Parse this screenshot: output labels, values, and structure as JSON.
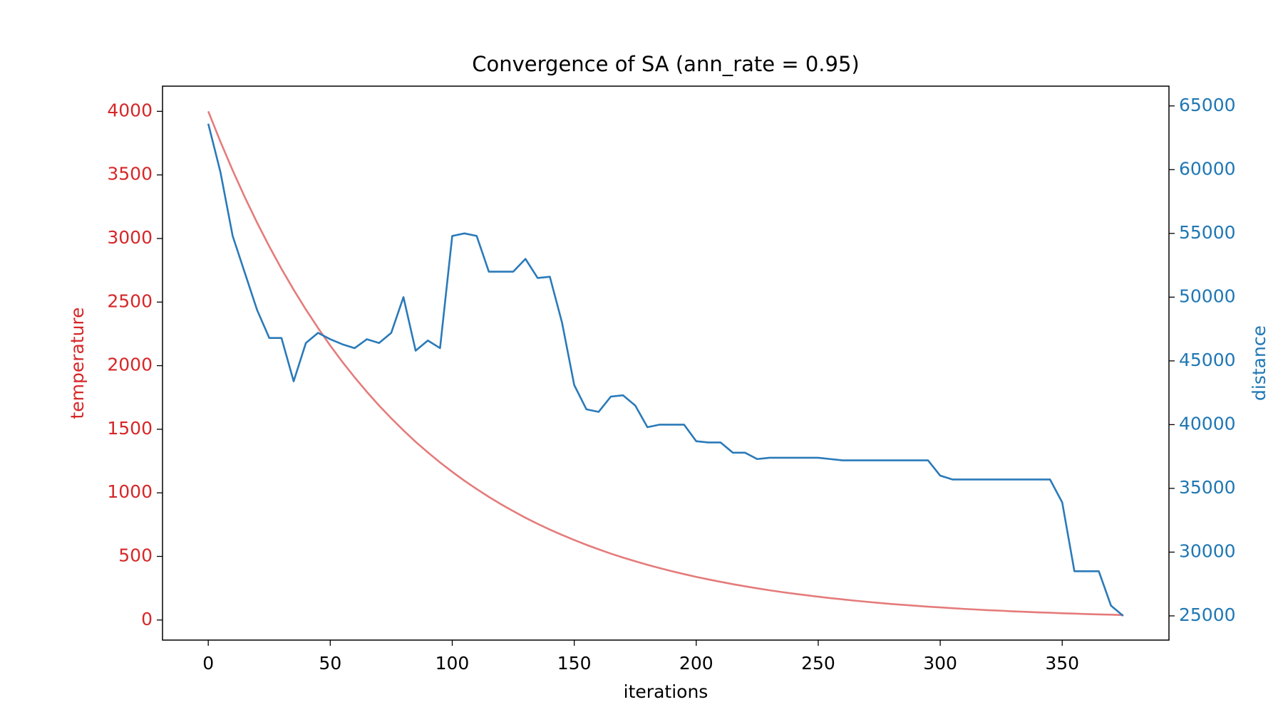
{
  "chart_data": {
    "type": "line",
    "title": "Convergence of SA (ann_rate = 0.95)",
    "xlabel": "iterations",
    "x": [
      0,
      5,
      10,
      15,
      20,
      25,
      30,
      35,
      40,
      45,
      50,
      55,
      60,
      65,
      70,
      75,
      80,
      85,
      90,
      95,
      100,
      105,
      110,
      115,
      120,
      125,
      130,
      135,
      140,
      145,
      150,
      155,
      160,
      165,
      170,
      175,
      180,
      185,
      190,
      195,
      200,
      205,
      210,
      215,
      220,
      225,
      230,
      235,
      240,
      245,
      250,
      255,
      260,
      265,
      270,
      275,
      280,
      285,
      290,
      295,
      300,
      305,
      310,
      315,
      320,
      325,
      330,
      335,
      340,
      345,
      350,
      355,
      360,
      365,
      370,
      375
    ],
    "series": [
      {
        "name": "temperature",
        "color": "#e57b7b",
        "axis": "y",
        "values": [
          4000,
          3761,
          3536,
          3324,
          3125,
          2938,
          2762,
          2597,
          2442,
          2296,
          2158,
          2029,
          1908,
          1794,
          1686,
          1586,
          1491,
          1401,
          1318,
          1239,
          1165,
          1095,
          1030,
          968,
          910,
          856,
          804,
          756,
          711,
          669,
          629,
          591,
          556,
          522,
          491,
          462,
          434,
          408,
          384,
          361,
          339,
          319,
          300,
          282,
          265,
          249,
          234,
          220,
          207,
          195,
          183,
          172,
          162,
          152,
          143,
          134,
          126,
          119,
          112,
          105,
          99,
          93,
          87,
          82,
          77,
          73,
          68,
          64,
          60,
          57,
          53,
          50,
          47,
          44,
          42,
          39
        ]
      },
      {
        "name": "distance",
        "color": "#2a7ab9",
        "axis": "y2",
        "values": [
          63600,
          59800,
          54800,
          51900,
          49000,
          46800,
          46800,
          43400,
          46400,
          47200,
          46700,
          46300,
          46000,
          46700,
          46400,
          47200,
          50000,
          45800,
          46600,
          46000,
          54800,
          55000,
          54800,
          52000,
          52000,
          52000,
          53000,
          51500,
          51600,
          48000,
          43100,
          41200,
          41000,
          42200,
          42300,
          41500,
          39800,
          40000,
          40000,
          40000,
          38700,
          38600,
          38600,
          37800,
          37800,
          37300,
          37400,
          37400,
          37400,
          37400,
          37400,
          37300,
          37200,
          37200,
          37200,
          37200,
          37200,
          37200,
          37200,
          37200,
          36000,
          35700,
          35700,
          35700,
          35700,
          35700,
          35700,
          35700,
          35700,
          35700,
          33900,
          28500,
          28500,
          28500,
          25800,
          25000
        ]
      }
    ],
    "xlim": [
      -18.75,
      393.75
    ],
    "xticks": [
      0,
      50,
      100,
      150,
      200,
      250,
      300,
      350
    ],
    "ylim": [
      -158,
      4198
    ],
    "yticks": [
      0,
      500,
      1000,
      1500,
      2000,
      2500,
      3000,
      3500,
      4000
    ],
    "ycolor": "#d62728",
    "y2lim": [
      23100,
      66550
    ],
    "y2ticks": [
      25000,
      30000,
      35000,
      40000,
      45000,
      50000,
      55000,
      60000,
      65000
    ],
    "y2color": "#1f77b4",
    "grid": false
  }
}
